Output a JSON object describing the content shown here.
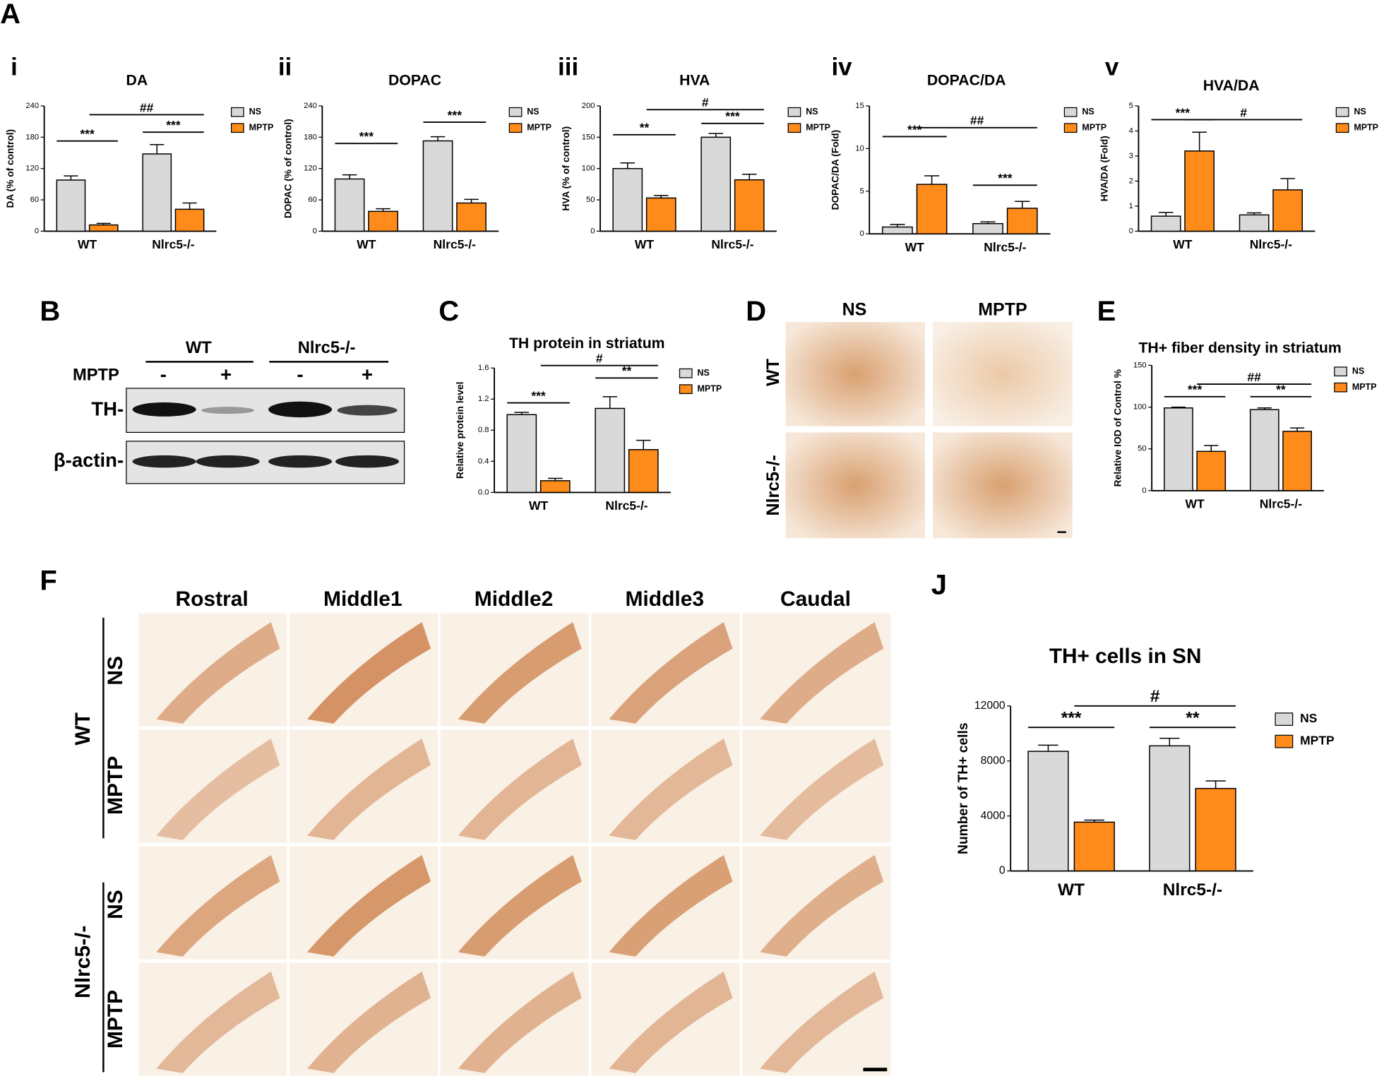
{
  "panel_labels": [
    "A",
    "B",
    "D",
    "F"
  ],
  "chart_data": [
    {
      "type": "bar",
      "panel": "i",
      "title": "DA",
      "y_label": "DA (% of control)",
      "categories": [
        "WT",
        "Nlrc5-/-"
      ],
      "series": [
        {
          "name": "NS",
          "color": "#d9d9d9",
          "values": [
            98,
            148
          ],
          "errors": [
            8,
            18
          ]
        },
        {
          "name": "MPTP",
          "color": "#ff8c1a",
          "values": [
            12,
            42
          ],
          "errors": [
            3,
            12
          ]
        }
      ],
      "ylim": [
        0,
        240
      ],
      "yticks": [
        0,
        60,
        120,
        180,
        240
      ],
      "annotations": [
        "***",
        "***",
        "##"
      ]
    },
    {
      "type": "bar",
      "panel": "ii",
      "title": "DOPAC",
      "y_label": "DOPAC (% of control)",
      "categories": [
        "WT",
        "Nlrc5-/-"
      ],
      "series": [
        {
          "name": "NS",
          "color": "#d9d9d9",
          "values": [
            100,
            173
          ],
          "errors": [
            8,
            8
          ]
        },
        {
          "name": "MPTP",
          "color": "#ff8c1a",
          "values": [
            38,
            54
          ],
          "errors": [
            5,
            7
          ]
        }
      ],
      "ylim": [
        0,
        240
      ],
      "yticks": [
        0,
        60,
        120,
        180,
        240
      ],
      "annotations": [
        "***",
        "***"
      ]
    },
    {
      "type": "bar",
      "panel": "iii",
      "title": "HVA",
      "y_label": "HVA (% of control)",
      "categories": [
        "WT",
        "Nlrc5-/-"
      ],
      "series": [
        {
          "name": "NS",
          "color": "#d9d9d9",
          "values": [
            100,
            150
          ],
          "errors": [
            9,
            6
          ]
        },
        {
          "name": "MPTP",
          "color": "#ff8c1a",
          "values": [
            53,
            82
          ],
          "errors": [
            4,
            9
          ]
        }
      ],
      "ylim": [
        0,
        200
      ],
      "yticks": [
        0,
        50,
        100,
        150,
        200
      ],
      "annotations": [
        "**",
        "***",
        "#"
      ]
    },
    {
      "type": "bar",
      "panel": "iv",
      "title": "DOPAC/DA",
      "y_label": "DOPAC/DA (Fold)",
      "categories": [
        "WT",
        "Nlrc5-/-"
      ],
      "series": [
        {
          "name": "NS",
          "color": "#d9d9d9",
          "values": [
            0.8,
            1.2
          ],
          "errors": [
            0.3,
            0.2
          ]
        },
        {
          "name": "MPTP",
          "color": "#ff8c1a",
          "values": [
            5.8,
            3.0
          ],
          "errors": [
            1.0,
            0.8
          ]
        }
      ],
      "ylim": [
        0,
        15
      ],
      "yticks": [
        0,
        5,
        10,
        15
      ],
      "annotations": [
        "***",
        "***",
        "##"
      ]
    },
    {
      "type": "bar",
      "panel": "v",
      "title": "HVA/DA",
      "y_label": "HVA/DA (Fold)",
      "categories": [
        "WT",
        "Nlrc5-/-"
      ],
      "series": [
        {
          "name": "NS",
          "color": "#d9d9d9",
          "values": [
            0.6,
            0.65
          ],
          "errors": [
            0.15,
            0.08
          ]
        },
        {
          "name": "MPTP",
          "color": "#ff8c1a",
          "values": [
            3.2,
            1.65
          ],
          "errors": [
            0.75,
            0.45
          ]
        }
      ],
      "ylim": [
        0,
        5
      ],
      "yticks": [
        0,
        1,
        2,
        3,
        4,
        5
      ],
      "annotations": [
        "***",
        "#"
      ]
    },
    {
      "type": "bar",
      "panel": "C",
      "title": "TH protein in striatum",
      "y_label": "Relative protein level",
      "categories": [
        "WT",
        "Nlrc5-/-"
      ],
      "series": [
        {
          "name": "NS",
          "color": "#d9d9d9",
          "values": [
            1.0,
            1.08
          ],
          "errors": [
            0.03,
            0.15
          ]
        },
        {
          "name": "MPTP",
          "color": "#ff8c1a",
          "values": [
            0.15,
            0.55
          ],
          "errors": [
            0.03,
            0.12
          ]
        }
      ],
      "ylim": [
        0,
        1.6
      ],
      "yticks": [
        {
          "value": 0,
          "label": "0.0"
        },
        0.4,
        0.8,
        1.2,
        1.6
      ],
      "annotations": [
        "***",
        "**",
        "#"
      ]
    },
    {
      "type": "bar",
      "panel": "E",
      "title": "TH+ fiber density in striatum",
      "y_label": "Relative IOD of Control %",
      "categories": [
        "WT",
        "Nlrc5-/-"
      ],
      "series": [
        {
          "name": "NS",
          "color": "#d9d9d9",
          "values": [
            99,
            97
          ],
          "errors": [
            1,
            2
          ]
        },
        {
          "name": "MPTP",
          "color": "#ff8c1a",
          "values": [
            47,
            71
          ],
          "errors": [
            7,
            4
          ]
        }
      ],
      "ylim": [
        0,
        150
      ],
      "yticks": [
        0,
        50,
        100,
        150
      ],
      "annotations": [
        "***",
        "**",
        "##"
      ]
    },
    {
      "type": "bar",
      "panel": "J",
      "title": "TH+ cells in SN",
      "y_label": "Number of TH+ cells",
      "categories": [
        "WT",
        "Nlrc5-/-"
      ],
      "series": [
        {
          "name": "NS",
          "color": "#d9d9d9",
          "values": [
            8700,
            9100
          ],
          "errors": [
            450,
            550
          ]
        },
        {
          "name": "MPTP",
          "color": "#ff8c1a",
          "values": [
            3550,
            6000
          ],
          "errors": [
            150,
            550
          ]
        }
      ],
      "ylim": [
        0,
        12000
      ],
      "yticks": [
        0,
        4000,
        8000,
        12000
      ],
      "annotations": [
        "***",
        "**",
        "#"
      ]
    }
  ],
  "blot": {
    "groups": [
      "WT",
      "Nlrc5-/-"
    ],
    "row_label": "MPTP",
    "signs": [
      "-",
      "+",
      "-",
      "+"
    ],
    "bands": [
      "TH-",
      "β-actin-"
    ]
  },
  "stain_d": {
    "columns": [
      "NS",
      "MPTP"
    ],
    "rows": [
      "WT",
      "Nlrc5-/-"
    ]
  },
  "stain_f": {
    "columns": [
      "Rostral",
      "Middle1",
      "Middle2",
      "Middle3",
      "Caudal"
    ],
    "genotypes": [
      "WT",
      "Nlrc5-/-"
    ],
    "treatments": [
      "NS",
      "MPTP"
    ]
  }
}
